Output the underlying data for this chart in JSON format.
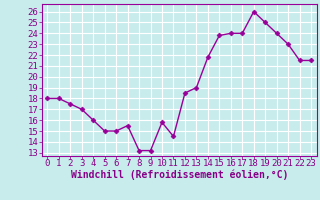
{
  "x": [
    0,
    1,
    2,
    3,
    4,
    5,
    6,
    7,
    8,
    9,
    10,
    11,
    12,
    13,
    14,
    15,
    16,
    17,
    18,
    19,
    20,
    21,
    22,
    23
  ],
  "y": [
    18.0,
    18.0,
    17.5,
    17.0,
    16.0,
    15.0,
    15.0,
    15.5,
    13.2,
    13.2,
    15.8,
    14.5,
    18.5,
    19.0,
    21.8,
    23.8,
    24.0,
    24.0,
    26.0,
    25.0,
    24.0,
    23.0,
    21.5,
    21.5
  ],
  "line_color": "#990099",
  "marker": "D",
  "marker_size": 2.5,
  "linewidth": 1.0,
  "xlabel": "Windchill (Refroidissement éolien,°C)",
  "xlabel_fontsize": 7,
  "yticks": [
    13,
    14,
    15,
    16,
    17,
    18,
    19,
    20,
    21,
    22,
    23,
    24,
    25,
    26
  ],
  "xlim": [
    -0.5,
    23.5
  ],
  "ylim": [
    12.7,
    26.7
  ],
  "background_color": "#c8ecec",
  "grid_color": "#ffffff",
  "tick_fontsize": 6.5,
  "xlabel_color": "#880088",
  "spine_color": "#990099"
}
